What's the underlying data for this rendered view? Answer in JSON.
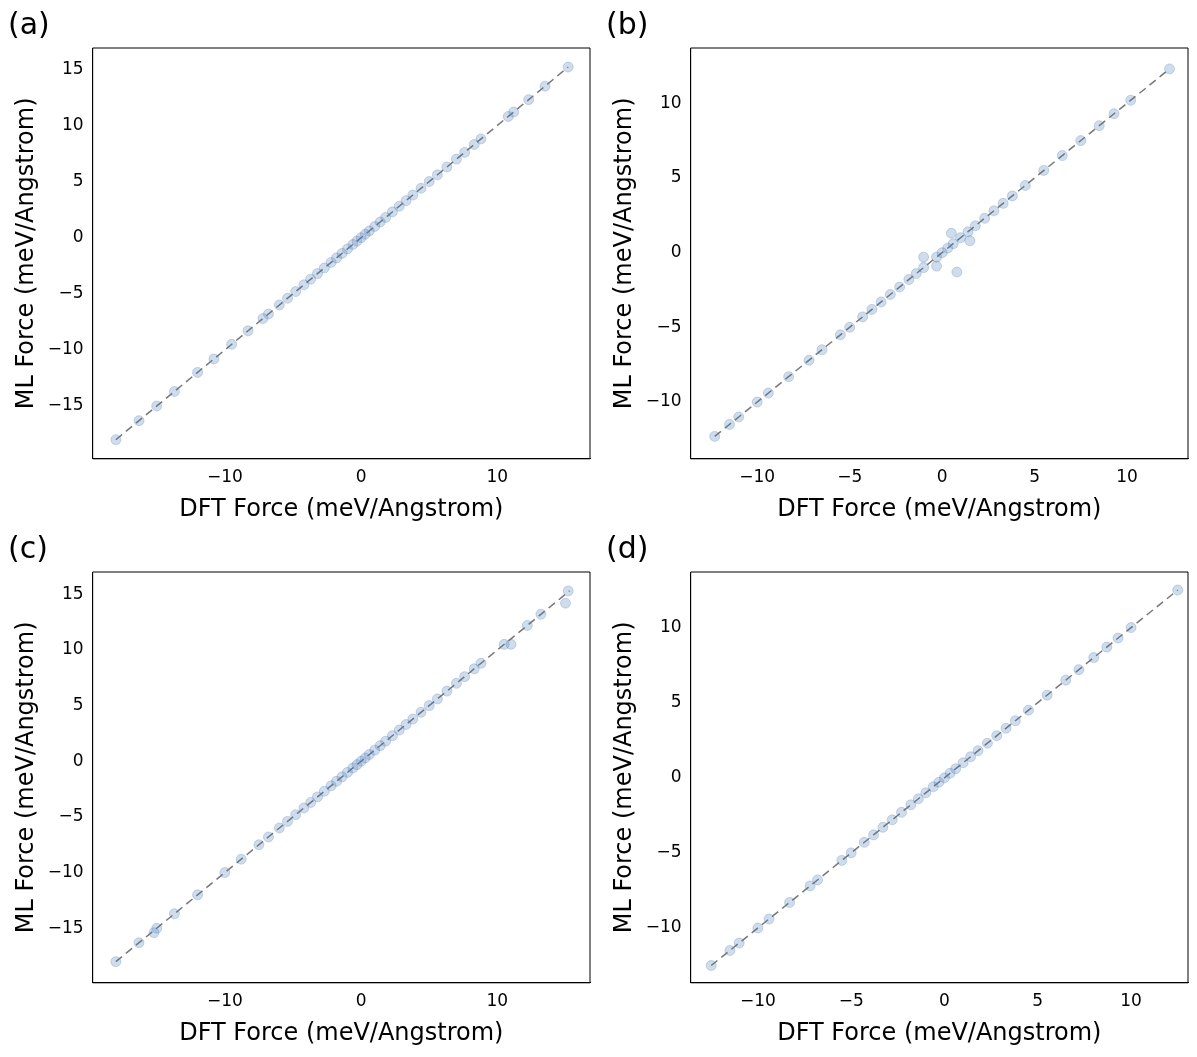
{
  "chart_data": [
    {
      "type": "scatter",
      "title": "(a)",
      "xlabel": "DFT Force (meV/Angstrom)",
      "ylabel": "ML Force (meV/Angstrom)",
      "xlim": [
        -19.7,
        16.8
      ],
      "ylim": [
        -19.7,
        16.9
      ],
      "xticks": [
        -10,
        0,
        10
      ],
      "yticks": [
        -15,
        -10,
        -5,
        0,
        5,
        10,
        15
      ],
      "grid": false,
      "legend": false,
      "marker": "circle",
      "series": [
        {
          "color": "#4a7bb7",
          "x": [
            -18,
            -16.3,
            -15,
            -13.7,
            -12,
            -10.8,
            -9.5,
            -8.3,
            -7.2,
            -6.8,
            -6,
            -5.4,
            -4.8,
            -4.2,
            -3.7,
            -3.2,
            -2.7,
            -2.2,
            -1.8,
            -1.4,
            -1,
            -0.6,
            -0.3,
            0,
            0.3,
            0.6,
            1,
            1.4,
            1.8,
            2.3,
            2.8,
            3.3,
            3.8,
            4.4,
            5,
            5.6,
            6.3,
            7,
            7.6,
            8.3,
            8.8,
            10.8,
            11.2,
            12.3,
            13.5,
            15.2
          ],
          "values": [
            -18,
            -16.3,
            -15,
            -13.7,
            -12,
            -10.8,
            -9.5,
            -8.3,
            -7.2,
            -6.8,
            -6,
            -5.4,
            -4.8,
            -4.2,
            -3.7,
            -3.2,
            -2.7,
            -2.2,
            -1.8,
            -1.4,
            -1,
            -0.6,
            -0.3,
            0,
            0.3,
            0.6,
            1,
            1.4,
            1.8,
            2.3,
            2.8,
            3.3,
            3.8,
            4.4,
            5,
            5.6,
            6.3,
            7,
            7.6,
            8.3,
            8.8,
            10.8,
            11.2,
            12.3,
            13.5,
            15.2
          ]
        },
        {
          "type": "line",
          "color": "#777777",
          "line_style": "dashed",
          "marker": "none",
          "x": [
            -18,
            15.2
          ],
          "values": [
            -18,
            15.2
          ]
        }
      ]
    },
    {
      "type": "scatter",
      "title": "(b)",
      "xlabel": "DFT Force (meV/Angstrom)",
      "ylabel": "ML Force (meV/Angstrom)",
      "xlim": [
        -13.6,
        13.3
      ],
      "ylim": [
        -13.8,
        13.7
      ],
      "xticks": [
        -10,
        -5,
        0,
        5,
        10
      ],
      "yticks": [
        -10,
        -5,
        0,
        5,
        10
      ],
      "grid": false,
      "legend": false,
      "marker": "circle",
      "series": [
        {
          "color": "#4a7bb7",
          "x": [
            -12.3,
            -11.5,
            -11,
            -10,
            -9.4,
            -8.3,
            -7.2,
            -6.5,
            -5.5,
            -5,
            -4.3,
            -3.8,
            -3.3,
            -2.8,
            -2.3,
            -1.8,
            -1.4,
            -1,
            -0.3,
            0,
            0.3,
            0.6,
            1,
            1.4,
            1.8,
            2.3,
            2.8,
            3.3,
            3.8,
            4.5,
            5.5,
            6.5,
            7.5,
            8.5,
            9.3,
            10.2,
            12.3,
            0.8,
            -1,
            0.5,
            -0.3,
            1.5
          ],
          "values": [
            -12.3,
            -11.5,
            -11,
            -10,
            -9.4,
            -8.3,
            -7.2,
            -6.5,
            -5.5,
            -5,
            -4.3,
            -3.8,
            -3.3,
            -2.8,
            -2.3,
            -1.8,
            -1.4,
            -1,
            -0.3,
            0,
            0.3,
            0.6,
            1,
            1.4,
            1.8,
            2.3,
            2.8,
            3.3,
            3.8,
            4.5,
            5.5,
            6.5,
            7.5,
            8.5,
            9.3,
            10.2,
            12.3,
            -1.3,
            -0.3,
            1.3,
            -0.9,
            0.8
          ]
        },
        {
          "type": "line",
          "color": "#777777",
          "line_style": "dashed",
          "marker": "none",
          "x": [
            -12.3,
            12.3
          ],
          "values": [
            -12.3,
            12.3
          ]
        }
      ]
    },
    {
      "type": "scatter",
      "title": "(c)",
      "xlabel": "DFT Force (meV/Angstrom)",
      "ylabel": "ML Force (meV/Angstrom)",
      "xlim": [
        -19.7,
        16.8
      ],
      "ylim": [
        -19.9,
        17
      ],
      "xticks": [
        -10,
        0,
        10
      ],
      "yticks": [
        -15,
        -10,
        -5,
        0,
        5,
        10,
        15
      ],
      "grid": false,
      "legend": false,
      "marker": "circle",
      "series": [
        {
          "color": "#4a7bb7",
          "x": [
            -18,
            -16.3,
            -15.2,
            -15,
            -13.7,
            -12,
            -10,
            -8.8,
            -7.5,
            -6.8,
            -6,
            -5.4,
            -4.8,
            -4.2,
            -3.7,
            -3.2,
            -2.7,
            -2.2,
            -1.8,
            -1.4,
            -1,
            -0.6,
            -0.3,
            0,
            0.3,
            0.6,
            1,
            1.4,
            1.8,
            2.3,
            2.8,
            3.3,
            3.8,
            4.4,
            5,
            5.6,
            6.3,
            7,
            7.6,
            8.3,
            8.8,
            10.5,
            11,
            12.2,
            13.2,
            15,
            15.2
          ],
          "values": [
            -18,
            -16.3,
            -15.4,
            -15,
            -13.7,
            -12,
            -10,
            -8.8,
            -7.5,
            -6.8,
            -6,
            -5.4,
            -4.8,
            -4.2,
            -3.7,
            -3.2,
            -2.7,
            -2.2,
            -1.8,
            -1.4,
            -1,
            -0.6,
            -0.3,
            0,
            0.3,
            0.6,
            1,
            1.4,
            1.8,
            2.3,
            2.8,
            3.3,
            3.8,
            4.4,
            5,
            5.6,
            6.3,
            7,
            7.6,
            8.3,
            8.8,
            10.5,
            10.5,
            12.2,
            13.2,
            14.2,
            15.3
          ]
        },
        {
          "type": "line",
          "color": "#777777",
          "line_style": "dashed",
          "marker": "none",
          "x": [
            -18,
            15.3
          ],
          "values": [
            -18,
            15.3
          ]
        }
      ]
    },
    {
      "type": "scatter",
      "title": "(d)",
      "xlabel": "DFT Force (meV/Angstrom)",
      "ylabel": "ML Force (meV/Angstrom)",
      "xlim": [
        -13.6,
        13.05
      ],
      "ylim": [
        -13.65,
        13.7
      ],
      "xticks": [
        -10,
        -5,
        0,
        5,
        10
      ],
      "yticks": [
        -10,
        -5,
        0,
        5,
        10
      ],
      "grid": false,
      "legend": false,
      "marker": "circle",
      "series": [
        {
          "color": "#4a7bb7",
          "x": [
            -12.5,
            -11.5,
            -11,
            -10,
            -9.4,
            -8.3,
            -7.2,
            -6.8,
            -5.5,
            -5,
            -4.3,
            -3.8,
            -3.3,
            -2.8,
            -2.3,
            -1.8,
            -1.4,
            -1,
            -0.6,
            -0.3,
            0,
            0.3,
            0.6,
            1,
            1.4,
            1.8,
            2.3,
            2.8,
            3.3,
            3.8,
            4.5,
            5.5,
            6.5,
            7.2,
            8,
            8.7,
            9.3,
            10,
            12.5
          ],
          "values": [
            -12.5,
            -11.5,
            -11,
            -10,
            -9.4,
            -8.3,
            -7.2,
            -6.8,
            -5.5,
            -5,
            -4.3,
            -3.8,
            -3.3,
            -2.8,
            -2.3,
            -1.8,
            -1.4,
            -1,
            -0.6,
            -0.3,
            0,
            0.3,
            0.6,
            1,
            1.4,
            1.8,
            2.3,
            2.8,
            3.3,
            3.8,
            4.5,
            5.5,
            6.5,
            7.2,
            8,
            8.7,
            9.3,
            10,
            12.5
          ]
        },
        {
          "type": "line",
          "color": "#777777",
          "line_style": "dashed",
          "marker": "none",
          "x": [
            -12.5,
            12.5
          ],
          "values": [
            -12.5,
            12.5
          ]
        }
      ]
    }
  ]
}
